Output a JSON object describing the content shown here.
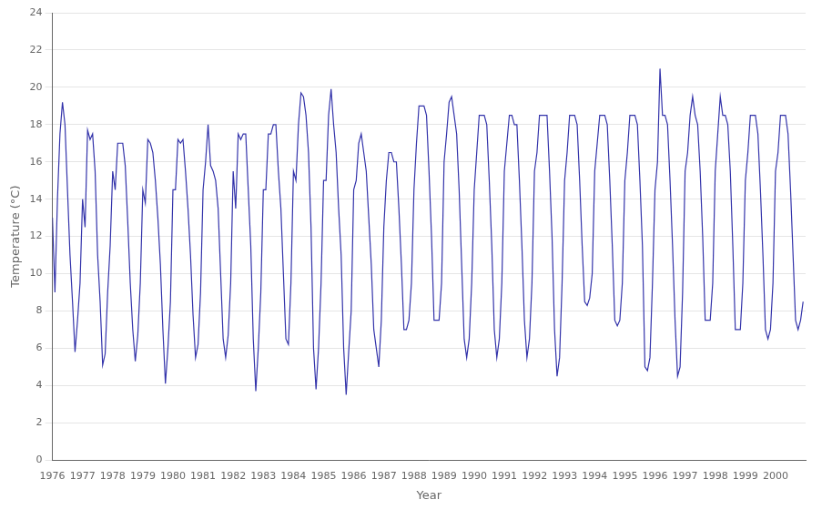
{
  "chart_data": {
    "type": "line",
    "xlabel": "Year",
    "ylabel": "Temperature (°C)",
    "color": "#3333aa",
    "grid": "y",
    "xlim": [
      1976,
      2001
    ],
    "xticks": [
      1976,
      1977,
      1978,
      1979,
      1980,
      1981,
      1982,
      1983,
      1984,
      1985,
      1986,
      1987,
      1988,
      1989,
      1990,
      1991,
      1992,
      1993,
      1994,
      1995,
      1996,
      1997,
      1998,
      1999,
      2000
    ],
    "ylim": [
      0,
      24
    ],
    "yticks": [
      0,
      2,
      4,
      6,
      8,
      10,
      12,
      14,
      16,
      18,
      20,
      22,
      24
    ],
    "x": [
      1976,
      1976.083333,
      1976.166667,
      1976.25,
      1976.333333,
      1976.416667,
      1976.5,
      1976.583333,
      1976.666667,
      1976.75,
      1976.833333,
      1976.916667,
      1977,
      1977.083333,
      1977.166667,
      1977.25,
      1977.333333,
      1977.416667,
      1977.5,
      1977.583333,
      1977.666667,
      1977.75,
      1977.833333,
      1977.916667,
      1978,
      1978.083333,
      1978.166667,
      1978.25,
      1978.333333,
      1978.416667,
      1978.5,
      1978.583333,
      1978.666667,
      1978.75,
      1978.833333,
      1978.916667,
      1979,
      1979.083333,
      1979.166667,
      1979.25,
      1979.333333,
      1979.416667,
      1979.5,
      1979.583333,
      1979.666667,
      1979.75,
      1979.833333,
      1979.916667,
      1980,
      1980.083333,
      1980.166667,
      1980.25,
      1980.333333,
      1980.416667,
      1980.5,
      1980.583333,
      1980.666667,
      1980.75,
      1980.833333,
      1980.916667,
      1981,
      1981.083333,
      1981.166667,
      1981.25,
      1981.333333,
      1981.416667,
      1981.5,
      1981.583333,
      1981.666667,
      1981.75,
      1981.833333,
      1981.916667,
      1982,
      1982.083333,
      1982.166667,
      1982.25,
      1982.333333,
      1982.416667,
      1982.5,
      1982.583333,
      1982.666667,
      1982.75,
      1982.833333,
      1982.916667,
      1983,
      1983.083333,
      1983.166667,
      1983.25,
      1983.333333,
      1983.416667,
      1983.5,
      1983.583333,
      1983.666667,
      1983.75,
      1983.833333,
      1983.916667,
      1984,
      1984.083333,
      1984.166667,
      1984.25,
      1984.333333,
      1984.416667,
      1984.5,
      1984.583333,
      1984.666667,
      1984.75,
      1984.833333,
      1984.916667,
      1985,
      1985.083333,
      1985.166667,
      1985.25,
      1985.333333,
      1985.416667,
      1985.5,
      1985.583333,
      1985.666667,
      1985.75,
      1985.833333,
      1985.916667,
      1986,
      1986.083333,
      1986.166667,
      1986.25,
      1986.333333,
      1986.416667,
      1986.5,
      1986.583333,
      1986.666667,
      1986.75,
      1986.833333,
      1986.916667,
      1987,
      1987.083333,
      1987.166667,
      1987.25,
      1987.333333,
      1987.416667,
      1987.5,
      1987.583333,
      1987.666667,
      1987.75,
      1987.833333,
      1987.916667,
      1988,
      1988.083333,
      1988.166667,
      1988.25,
      1988.333333,
      1988.416667,
      1988.5,
      1988.583333,
      1988.666667,
      1988.75,
      1988.833333,
      1988.916667,
      1989,
      1989.083333,
      1989.166667,
      1989.25,
      1989.333333,
      1989.416667,
      1989.5,
      1989.583333,
      1989.666667,
      1989.75,
      1989.833333,
      1989.916667,
      1990,
      1990.083333,
      1990.166667,
      1990.25,
      1990.333333,
      1990.416667,
      1990.5,
      1990.583333,
      1990.666667,
      1990.75,
      1990.833333,
      1990.916667,
      1991,
      1991.083333,
      1991.166667,
      1991.25,
      1991.333333,
      1991.416667,
      1991.5,
      1991.583333,
      1991.666667,
      1991.75,
      1991.833333,
      1991.916667,
      1992,
      1992.083333,
      1992.166667,
      1992.25,
      1992.333333,
      1992.416667,
      1992.5,
      1992.583333,
      1992.666667,
      1992.75,
      1992.833333,
      1992.916667,
      1993,
      1993.083333,
      1993.166667,
      1993.25,
      1993.333333,
      1993.416667,
      1993.5,
      1993.583333,
      1993.666667,
      1993.75,
      1993.833333,
      1993.916667,
      1994,
      1994.083333,
      1994.166667,
      1994.25,
      1994.333333,
      1994.416667,
      1994.5,
      1994.583333,
      1994.666667,
      1994.75,
      1994.833333,
      1994.916667,
      1995,
      1995.083333,
      1995.166667,
      1995.25,
      1995.333333,
      1995.416667,
      1995.5,
      1995.583333,
      1995.666667,
      1995.75,
      1995.833333,
      1995.916667,
      1996,
      1996.083333,
      1996.166667,
      1996.25,
      1996.333333,
      1996.416667,
      1996.5,
      1996.583333,
      1996.666667,
      1996.75,
      1996.833333,
      1996.916667,
      1997,
      1997.083333,
      1997.166667,
      1997.25,
      1997.333333,
      1997.416667,
      1997.5,
      1997.583333,
      1997.666667,
      1997.75,
      1997.833333,
      1997.916667,
      1998,
      1998.083333,
      1998.166667,
      1998.25,
      1998.333333,
      1998.416667,
      1998.5,
      1998.583333,
      1998.666667,
      1998.75,
      1998.833333,
      1998.916667,
      1999,
      1999.083333,
      1999.166667,
      1999.25,
      1999.333333,
      1999.416667,
      1999.5,
      1999.583333,
      1999.666667,
      1999.75,
      1999.833333,
      1999.916667,
      2000,
      2000.083333,
      2000.166667,
      2000.25,
      2000.333333,
      2000.416667,
      2000.5,
      2000.583333,
      2000.666667,
      2000.75,
      2000.833333,
      2000.916667
    ],
    "values": [
      13.0,
      9.0,
      14.0,
      17.5,
      19.2,
      18.0,
      14.5,
      11.0,
      8.5,
      5.8,
      7.5,
      9.5,
      14.0,
      12.5,
      17.7,
      17.2,
      17.5,
      15.5,
      11.0,
      8.5,
      5.1,
      5.7,
      9.0,
      11.5,
      15.5,
      14.5,
      17.0,
      17.0,
      17.0,
      15.8,
      12.8,
      9.5,
      7.0,
      5.3,
      6.7,
      9.5,
      14.5,
      13.8,
      17.2,
      17.0,
      16.5,
      15.0,
      13.0,
      10.5,
      7.0,
      4.1,
      6.0,
      8.5,
      14.5,
      14.5,
      17.2,
      17.0,
      17.2,
      15.5,
      13.5,
      11.0,
      7.8,
      5.5,
      6.2,
      9.0,
      14.5,
      16.0,
      18.0,
      15.8,
      15.5,
      15.0,
      13.5,
      10.0,
      6.5,
      5.5,
      6.7,
      9.5,
      15.5,
      13.5,
      17.5,
      17.2,
      17.5,
      17.5,
      14.5,
      11.5,
      6.5,
      3.7,
      6.0,
      9.0,
      14.5,
      14.5,
      17.5,
      17.5,
      18.0,
      18.0,
      15.5,
      13.5,
      10.0,
      6.5,
      6.2,
      9.5,
      15.5,
      15.0,
      18.0,
      19.7,
      19.5,
      18.5,
      16.5,
      12.5,
      6.0,
      3.8,
      6.0,
      9.5,
      15.0,
      15.0,
      18.5,
      19.9,
      18.0,
      16.5,
      13.5,
      11.0,
      6.0,
      3.5,
      5.8,
      8.0,
      14.5,
      15.0,
      17.0,
      17.5,
      16.5,
      15.5,
      13.0,
      10.5,
      7.0,
      6.0,
      5.0,
      7.5,
      12.5,
      15.0,
      16.5,
      16.5,
      16.0,
      16.0,
      13.5,
      10.5,
      7.0,
      7.0,
      7.5,
      9.5,
      14.5,
      17.0,
      19.0,
      19.0,
      19.0,
      18.5,
      15.5,
      12.0,
      7.5,
      7.5,
      7.5,
      9.5,
      16.0,
      17.5,
      19.2,
      19.5,
      18.5,
      17.5,
      14.5,
      10.5,
      6.5,
      5.5,
      6.5,
      9.5,
      14.5,
      16.5,
      18.5,
      18.5,
      18.5,
      18.0,
      15.0,
      11.5,
      7.0,
      5.5,
      6.5,
      9.5,
      15.5,
      17.0,
      18.5,
      18.5,
      18.0,
      18.0,
      15.0,
      11.5,
      7.5,
      5.5,
      6.5,
      9.5,
      15.5,
      16.5,
      18.5,
      18.5,
      18.5,
      18.5,
      15.5,
      12.0,
      7.0,
      4.5,
      5.5,
      9.5,
      15.0,
      16.5,
      18.5,
      18.5,
      18.5,
      18.0,
      15.0,
      11.5,
      8.5,
      8.3,
      8.7,
      10.0,
      15.5,
      17.0,
      18.5,
      18.5,
      18.5,
      18.0,
      15.0,
      11.5,
      7.5,
      7.2,
      7.5,
      9.5,
      15.0,
      16.5,
      18.5,
      18.5,
      18.5,
      18.0,
      15.0,
      11.5,
      5.0,
      4.8,
      5.5,
      9.5,
      14.5,
      16.0,
      21.0,
      18.5,
      18.5,
      18.0,
      15.0,
      11.5,
      7.5,
      4.5,
      5.0,
      9.0,
      15.5,
      16.5,
      18.5,
      19.5,
      18.5,
      18.0,
      15.5,
      12.0,
      7.5,
      7.5,
      7.5,
      9.5,
      15.5,
      17.5,
      19.5,
      18.5,
      18.5,
      18.0,
      15.5,
      11.5,
      7.0,
      7.0,
      7.0,
      9.5,
      15.0,
      16.5,
      18.5,
      18.5,
      18.5,
      17.5,
      14.5,
      11.0,
      7.0,
      6.5,
      7.0,
      9.5,
      15.5,
      16.5,
      18.5,
      18.5,
      18.5,
      17.5,
      14.5,
      11.0,
      7.5,
      7.0,
      7.5,
      8.5
    ]
  }
}
